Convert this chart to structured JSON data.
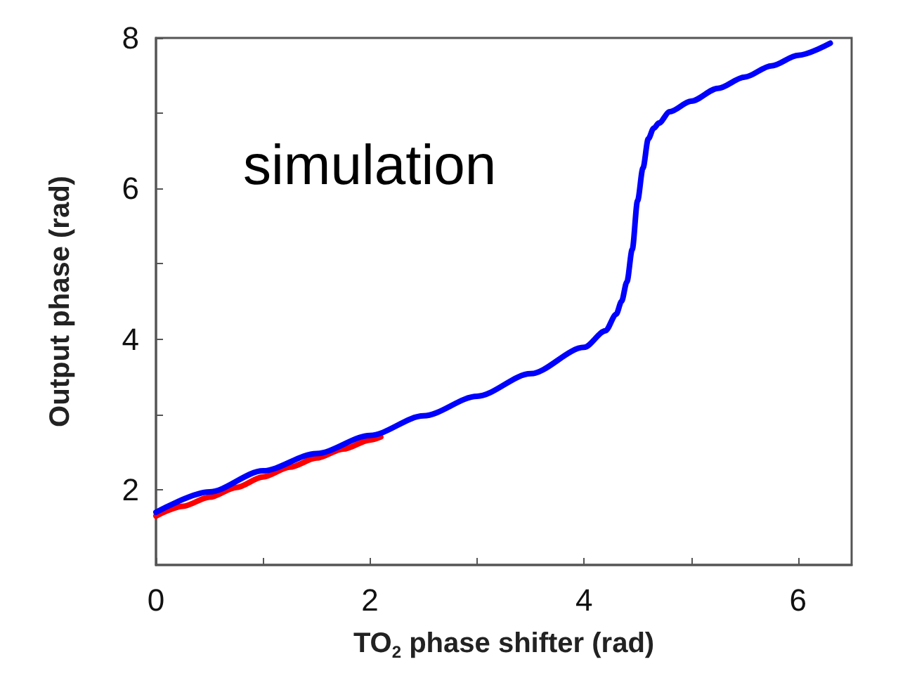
{
  "chart_data": {
    "type": "line",
    "xlabel": "TO$_{2}$ phase shifter (rad)",
    "ylabel": "Output phase (rad)",
    "annotations": [
      "simulation"
    ],
    "xlim": [
      0,
      6.5
    ],
    "ylim": [
      1,
      8
    ],
    "xticks": [
      0,
      {
        "value": 1,
        "label": null
      },
      2,
      {
        "value": 3,
        "label": null
      },
      4,
      {
        "value": 5,
        "label": null
      },
      6
    ],
    "yticks": [
      2,
      {
        "value": 3,
        "label": null
      },
      4,
      {
        "value": 5,
        "label": null
      },
      6,
      {
        "value": 7,
        "label": null
      },
      8
    ],
    "grid": false,
    "marker": "none",
    "line_style": "solid",
    "series": [
      {
        "color": "#ff0000",
        "x": [
          0,
          0.25,
          0.5,
          0.75,
          1,
          1.25,
          1.5,
          1.75,
          2,
          2.1
        ],
        "values": [
          1.65,
          1.78,
          1.9,
          2.03,
          2.17,
          2.3,
          2.42,
          2.54,
          2.66,
          2.7
        ]
      },
      {
        "color": "#0000ff",
        "x": [
          0,
          0.5,
          1,
          1.5,
          2,
          2.5,
          3,
          3.5,
          4,
          4.2,
          4.3,
          4.35,
          4.4,
          4.45,
          4.5,
          4.55,
          4.6,
          4.65,
          4.7,
          4.8,
          5,
          5.25,
          5.5,
          5.75,
          6,
          6.3
        ],
        "values": [
          1.7,
          1.97,
          2.25,
          2.48,
          2.72,
          2.98,
          3.24,
          3.54,
          3.89,
          4.11,
          4.33,
          4.5,
          4.76,
          5.19,
          5.84,
          6.27,
          6.66,
          6.8,
          6.87,
          7.02,
          7.16,
          7.33,
          7.48,
          7.63,
          7.77,
          7.93
        ]
      }
    ]
  }
}
